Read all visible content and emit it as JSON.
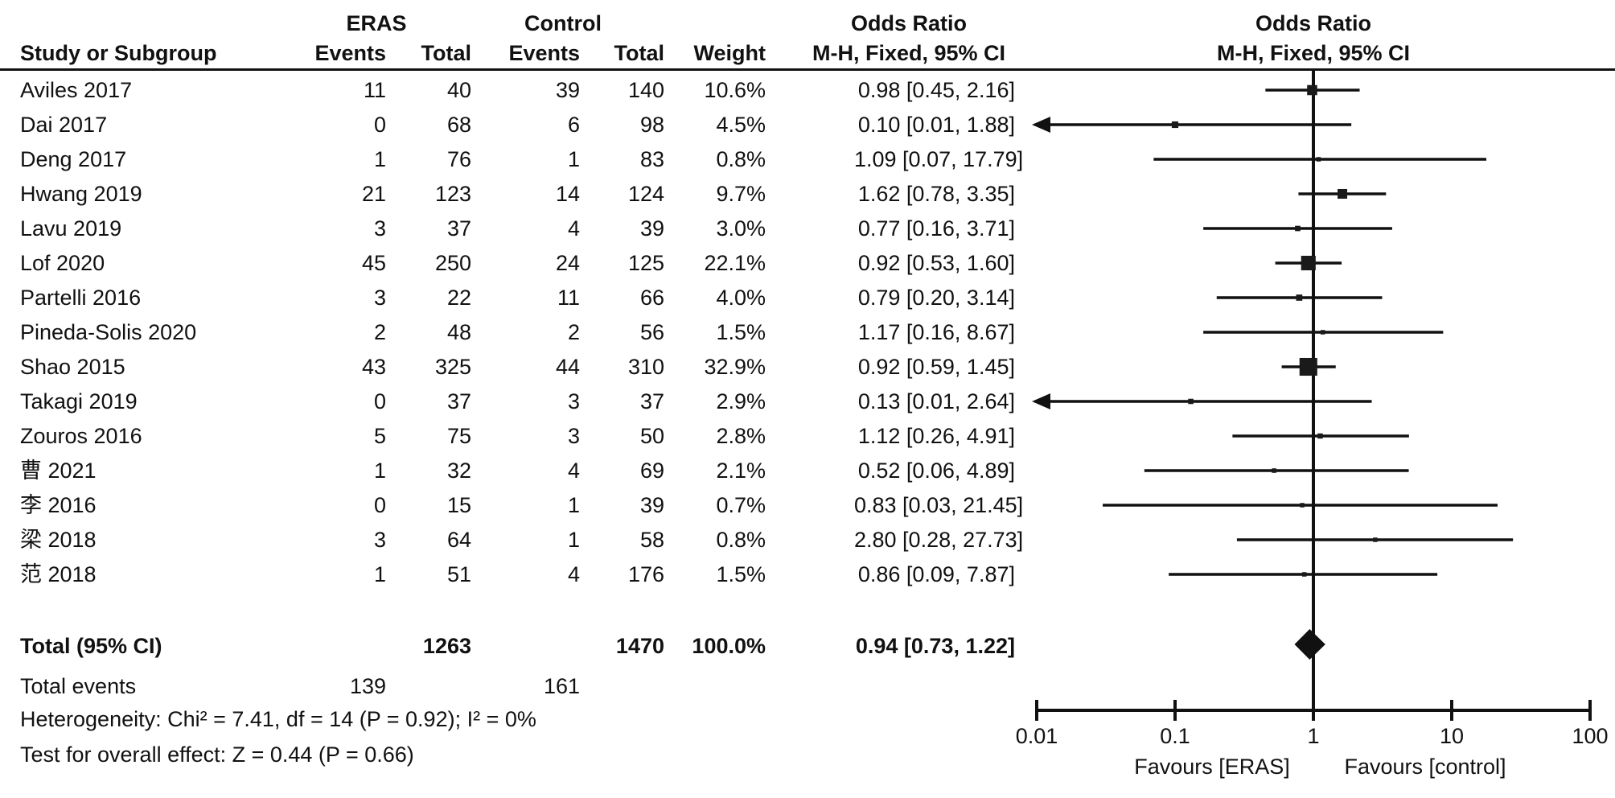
{
  "header": {
    "group_eras": "ERAS",
    "group_control": "Control",
    "or_header_left": "Odds Ratio",
    "or_header_right": "Odds Ratio",
    "col_study": "Study or Subgroup",
    "col_events_eras": "Events",
    "col_total_eras": "Total",
    "col_events_control": "Events",
    "col_total_control": "Total",
    "col_weight": "Weight",
    "col_mh_left": "M-H, Fixed, 95% CI",
    "col_mh_right": "M-H, Fixed, 95% CI"
  },
  "chart_data": {
    "type": "forest",
    "effect_measure": "Odds Ratio, M-H, Fixed, 95% CI",
    "x_axis": {
      "scale": "log10",
      "min": 0.01,
      "max": 100,
      "ticks": [
        0.01,
        0.1,
        1,
        10,
        100
      ],
      "tick_labels": [
        "0.01",
        "0.1",
        "1",
        "10",
        "100"
      ],
      "favours_left": "Favours [ERAS]",
      "favours_right": "Favours [control]"
    },
    "studies": [
      {
        "name": "Aviles 2017",
        "eras_events": "11",
        "eras_total": "40",
        "control_events": "39",
        "control_total": "140",
        "weight": "10.6%",
        "weight_pct": 10.6,
        "or": 0.98,
        "ci_low": 0.45,
        "ci_high": 2.16,
        "or_text": "0.98 [0.45, 2.16]"
      },
      {
        "name": "Dai 2017",
        "eras_events": "0",
        "eras_total": "68",
        "control_events": "6",
        "control_total": "98",
        "weight": "4.5%",
        "weight_pct": 4.5,
        "or": 0.1,
        "ci_low": 0.01,
        "ci_high": 1.88,
        "or_text": "0.10 [0.01, 1.88]"
      },
      {
        "name": "Deng 2017",
        "eras_events": "1",
        "eras_total": "76",
        "control_events": "1",
        "control_total": "83",
        "weight": "0.8%",
        "weight_pct": 0.8,
        "or": 1.09,
        "ci_low": 0.07,
        "ci_high": 17.79,
        "or_text": "1.09 [0.07, 17.79]"
      },
      {
        "name": "Hwang 2019",
        "eras_events": "21",
        "eras_total": "123",
        "control_events": "14",
        "control_total": "124",
        "weight": "9.7%",
        "weight_pct": 9.7,
        "or": 1.62,
        "ci_low": 0.78,
        "ci_high": 3.35,
        "or_text": "1.62 [0.78, 3.35]"
      },
      {
        "name": "Lavu 2019",
        "eras_events": "3",
        "eras_total": "37",
        "control_events": "4",
        "control_total": "39",
        "weight": "3.0%",
        "weight_pct": 3.0,
        "or": 0.77,
        "ci_low": 0.16,
        "ci_high": 3.71,
        "or_text": "0.77 [0.16, 3.71]"
      },
      {
        "name": "Lof 2020",
        "eras_events": "45",
        "eras_total": "250",
        "control_events": "24",
        "control_total": "125",
        "weight": "22.1%",
        "weight_pct": 22.1,
        "or": 0.92,
        "ci_low": 0.53,
        "ci_high": 1.6,
        "or_text": "0.92 [0.53, 1.60]"
      },
      {
        "name": "Partelli 2016",
        "eras_events": "3",
        "eras_total": "22",
        "control_events": "11",
        "control_total": "66",
        "weight": "4.0%",
        "weight_pct": 4.0,
        "or": 0.79,
        "ci_low": 0.2,
        "ci_high": 3.14,
        "or_text": "0.79 [0.20, 3.14]"
      },
      {
        "name": "Pineda-Solis 2020",
        "eras_events": "2",
        "eras_total": "48",
        "control_events": "2",
        "control_total": "56",
        "weight": "1.5%",
        "weight_pct": 1.5,
        "or": 1.17,
        "ci_low": 0.16,
        "ci_high": 8.67,
        "or_text": "1.17 [0.16, 8.67]"
      },
      {
        "name": "Shao 2015",
        "eras_events": "43",
        "eras_total": "325",
        "control_events": "44",
        "control_total": "310",
        "weight": "32.9%",
        "weight_pct": 32.9,
        "or": 0.92,
        "ci_low": 0.59,
        "ci_high": 1.45,
        "or_text": "0.92 [0.59, 1.45]"
      },
      {
        "name": "Takagi 2019",
        "eras_events": "0",
        "eras_total": "37",
        "control_events": "3",
        "control_total": "37",
        "weight": "2.9%",
        "weight_pct": 2.9,
        "or": 0.13,
        "ci_low": 0.01,
        "ci_high": 2.64,
        "or_text": "0.13 [0.01, 2.64]"
      },
      {
        "name": "Zouros 2016",
        "eras_events": "5",
        "eras_total": "75",
        "control_events": "3",
        "control_total": "50",
        "weight": "2.8%",
        "weight_pct": 2.8,
        "or": 1.12,
        "ci_low": 0.26,
        "ci_high": 4.91,
        "or_text": "1.12 [0.26, 4.91]"
      },
      {
        "name": "曹 2021",
        "eras_events": "1",
        "eras_total": "32",
        "control_events": "4",
        "control_total": "69",
        "weight": "2.1%",
        "weight_pct": 2.1,
        "or": 0.52,
        "ci_low": 0.06,
        "ci_high": 4.89,
        "or_text": "0.52 [0.06, 4.89]"
      },
      {
        "name": "李 2016",
        "eras_events": "0",
        "eras_total": "15",
        "control_events": "1",
        "control_total": "39",
        "weight": "0.7%",
        "weight_pct": 0.7,
        "or": 0.83,
        "ci_low": 0.03,
        "ci_high": 21.45,
        "or_text": "0.83 [0.03, 21.45]"
      },
      {
        "name": "梁 2018",
        "eras_events": "3",
        "eras_total": "64",
        "control_events": "1",
        "control_total": "58",
        "weight": "0.8%",
        "weight_pct": 0.8,
        "or": 2.8,
        "ci_low": 0.28,
        "ci_high": 27.73,
        "or_text": "2.80 [0.28, 27.73]"
      },
      {
        "name": "范 2018",
        "eras_events": "1",
        "eras_total": "51",
        "control_events": "4",
        "control_total": "176",
        "weight": "1.5%",
        "weight_pct": 1.5,
        "or": 0.86,
        "ci_low": 0.09,
        "ci_high": 7.87,
        "or_text": "0.86 [0.09, 7.87]"
      }
    ],
    "total": {
      "label": "Total (95% CI)",
      "eras_total": "1263",
      "control_total": "1470",
      "weight": "100.0%",
      "or": 0.94,
      "ci_low": 0.73,
      "ci_high": 1.22,
      "or_text": "0.94 [0.73, 1.22]"
    },
    "total_events": {
      "label": "Total events",
      "eras": "139",
      "control": "161"
    },
    "heterogeneity": "Heterogeneity: Chi² = 7.41, df = 14 (P = 0.92); I² = 0%",
    "overall_effect": "Test for overall effect: Z = 0.44 (P = 0.66)"
  },
  "colors": {
    "ink": "#111111",
    "background": "#ffffff"
  }
}
